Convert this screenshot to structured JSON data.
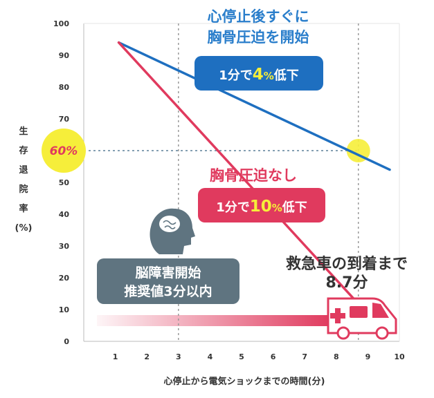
{
  "chart_data": {
    "type": "line",
    "xlabel": "心停止から電気ショックまでの時間(分)",
    "ylabel": "生存退院率(%)",
    "ylabel_chars": [
      "生",
      "存",
      "退",
      "院",
      "率",
      "(%)"
    ],
    "x_ticks": [
      1,
      2,
      3,
      4,
      5,
      6,
      7,
      8,
      9,
      10
    ],
    "y_ticks": [
      0,
      10,
      20,
      30,
      40,
      50,
      60,
      70,
      80,
      90,
      100
    ],
    "xlim": [
      0,
      10
    ],
    "ylim": [
      0,
      100
    ],
    "series": [
      {
        "name": "心停止後すぐに胸骨圧迫を開始",
        "color": "#1e6fc0",
        "points": [
          [
            1,
            94
          ],
          [
            10,
            54
          ]
        ]
      },
      {
        "name": "胸骨圧迫なし",
        "color": "#e03a5e",
        "points": [
          [
            1,
            94
          ],
          [
            8.7,
            13
          ]
        ]
      }
    ],
    "reference_line": {
      "y": 60,
      "x_vertical": [
        3,
        8.7
      ],
      "marker_label": "60%"
    },
    "callouts": {
      "blue_title": [
        "心停止後すぐに",
        "胸骨圧迫を開始"
      ],
      "blue_badge": {
        "pre": "1分で",
        "value": "4",
        "unit": "%",
        "post": "低下"
      },
      "red_title": "胸骨圧迫なし",
      "red_badge": {
        "pre": "1分で",
        "value": "10",
        "unit": "%",
        "post": "低下"
      },
      "brain_box": [
        "脳障害開始",
        "推奨値3分以内"
      ],
      "ambulance": [
        "救急車の到着まで",
        "8.7分"
      ]
    },
    "colors": {
      "blue": "#1e6fc0",
      "red": "#e03a5e",
      "yellow": "#f6ee3a",
      "gray_box": "#5f7480",
      "grid": "#999999"
    }
  }
}
